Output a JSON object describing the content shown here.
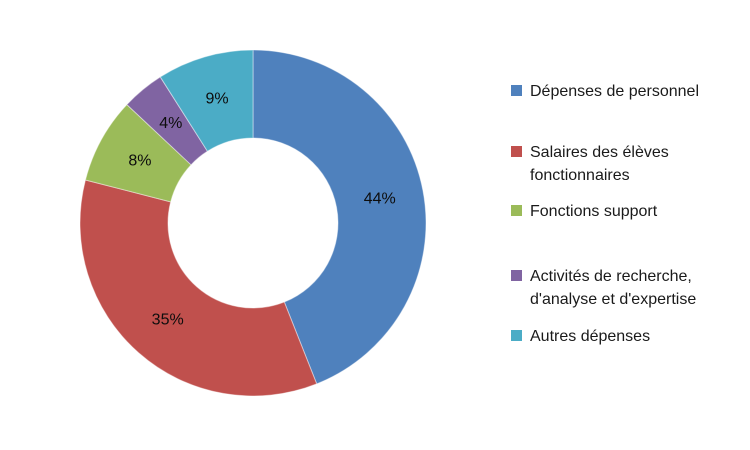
{
  "chart_data": {
    "type": "pie",
    "subtype": "donut",
    "title": "",
    "categories": [
      "Dépenses de personnel",
      "Salaires des élèves fonctionnaires",
      "Fonctions support",
      "Activités de recherche, d'analyse et d'expertise",
      "Autres dépenses"
    ],
    "values": [
      44,
      35,
      8,
      4,
      9
    ],
    "data_labels": [
      "44%",
      "35%",
      "8%",
      "4%",
      "9%"
    ],
    "colors": [
      "#4F81BD",
      "#C0504D",
      "#9BBB59",
      "#8064A2",
      "#4BACC6"
    ],
    "label_color": "#0d0d0d",
    "background_color": "#ffffff",
    "legend_position": "right",
    "start_angle_deg": 0,
    "direction": "clockwise",
    "donut_hole_ratio": 0.49
  }
}
